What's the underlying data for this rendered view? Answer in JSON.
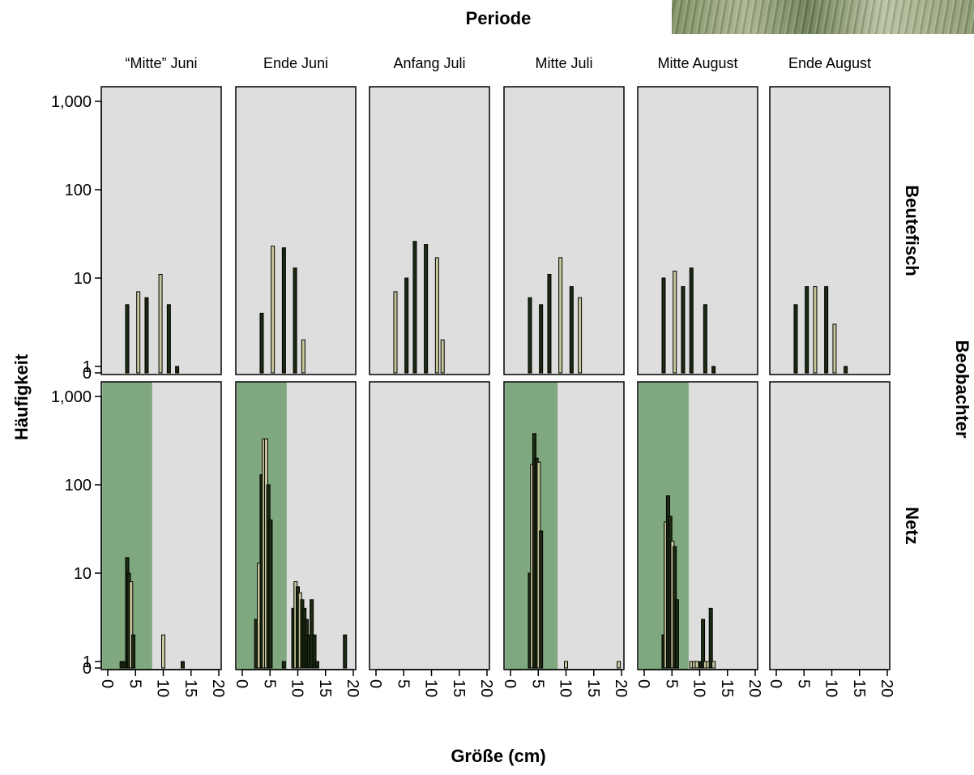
{
  "chart_data": {
    "type": "bar",
    "title": "Periode",
    "xlabel": "Größe (cm)",
    "ylabel": "Häufigkeit",
    "row_group_label": "Beobachter",
    "columns": [
      "“Mitte” Juni",
      "Ende Juni",
      "Anfang Juli",
      "Mitte Juli",
      "Mitte August",
      "Ende August"
    ],
    "rows": [
      "Beutefisch",
      "Netz"
    ],
    "x_ticks": [
      "0",
      "5",
      "10",
      "15",
      "20"
    ],
    "xlim": [
      -1,
      21
    ],
    "y_ticks": [
      {
        "value": 0,
        "label": "0"
      },
      {
        "value": 1,
        "label": "1"
      },
      {
        "value": 10,
        "label": "10"
      },
      {
        "value": 100,
        "label": "100"
      },
      {
        "value": 1000,
        "label": "1,000"
      }
    ],
    "y_scale": "log (pseudo-log, 0 shown)",
    "colors": {
      "panel_bg": "#dedede",
      "shade": "#7fa87f",
      "bar_light": "#c9c79c",
      "bar_dark": "#1c2a12"
    },
    "panels": [
      {
        "row": "Beutefisch",
        "column": "“Mitte” Juni",
        "shade_x": null,
        "bars": [
          [
            3.5,
            5,
            "dark"
          ],
          [
            5.5,
            7,
            "light"
          ],
          [
            7,
            6,
            "dark"
          ],
          [
            9.5,
            11,
            "light"
          ],
          [
            11,
            5,
            "dark"
          ],
          [
            12.5,
            1,
            "dark"
          ]
        ]
      },
      {
        "row": "Beutefisch",
        "column": "Ende Juni",
        "shade_x": null,
        "bars": [
          [
            3.5,
            4,
            "dark"
          ],
          [
            5.5,
            23,
            "light"
          ],
          [
            7.5,
            22,
            "dark"
          ],
          [
            9.5,
            13,
            "dark"
          ],
          [
            11,
            2,
            "light"
          ]
        ]
      },
      {
        "row": "Beutefisch",
        "column": "Anfang Juli",
        "shade_x": null,
        "bars": [
          [
            3.5,
            7,
            "light"
          ],
          [
            5.5,
            10,
            "dark"
          ],
          [
            7,
            26,
            "dark"
          ],
          [
            9,
            24,
            "dark"
          ],
          [
            11,
            17,
            "light"
          ],
          [
            12,
            2,
            "light"
          ]
        ]
      },
      {
        "row": "Beutefisch",
        "column": "Mitte Juli",
        "shade_x": null,
        "bars": [
          [
            3.5,
            6,
            "dark"
          ],
          [
            5.5,
            5,
            "dark"
          ],
          [
            7,
            11,
            "dark"
          ],
          [
            9,
            17,
            "light"
          ],
          [
            11,
            8,
            "dark"
          ],
          [
            12.5,
            6,
            "light"
          ]
        ]
      },
      {
        "row": "Beutefisch",
        "column": "Mitte August",
        "shade_x": null,
        "bars": [
          [
            3.5,
            10,
            "dark"
          ],
          [
            5.5,
            12,
            "light"
          ],
          [
            7,
            8,
            "dark"
          ],
          [
            8.5,
            13,
            "dark"
          ],
          [
            11,
            5,
            "dark"
          ],
          [
            12.5,
            1,
            "dark"
          ]
        ]
      },
      {
        "row": "Beutefisch",
        "column": "Ende August",
        "shade_x": null,
        "bars": [
          [
            3.5,
            5,
            "dark"
          ],
          [
            5.5,
            8,
            "dark"
          ],
          [
            7,
            8,
            "light"
          ],
          [
            9,
            8,
            "dark"
          ],
          [
            10.5,
            3,
            "light"
          ],
          [
            12.5,
            1,
            "dark"
          ]
        ]
      },
      {
        "row": "Netz",
        "column": "“Mitte” Juni",
        "shade_x": [
          -1,
          8
        ],
        "bars": [
          [
            2.5,
            1,
            "dark"
          ],
          [
            3,
            1,
            "dark"
          ],
          [
            3.5,
            15,
            "dark"
          ],
          [
            3.8,
            10,
            "dark"
          ],
          [
            4.2,
            8,
            "light"
          ],
          [
            4.6,
            2,
            "dark"
          ],
          [
            10,
            2,
            "light"
          ],
          [
            13.5,
            1,
            "dark"
          ]
        ]
      },
      {
        "row": "Netz",
        "column": "Ende Juni",
        "shade_x": [
          -1,
          8
        ],
        "bars": [
          [
            2.5,
            3,
            "dark"
          ],
          [
            3,
            13,
            "light"
          ],
          [
            3.5,
            130,
            "dark"
          ],
          [
            3.9,
            330,
            "light"
          ],
          [
            4.3,
            330,
            "light"
          ],
          [
            4.7,
            100,
            "dark"
          ],
          [
            5.1,
            40,
            "dark"
          ],
          [
            7.5,
            1,
            "dark"
          ],
          [
            9.2,
            4,
            "dark"
          ],
          [
            9.6,
            8,
            "light"
          ],
          [
            10,
            7,
            "dark"
          ],
          [
            10.4,
            6,
            "light"
          ],
          [
            10.8,
            5,
            "dark"
          ],
          [
            11.2,
            4,
            "dark"
          ],
          [
            11.6,
            3,
            "dark"
          ],
          [
            12,
            2,
            "dark"
          ],
          [
            12.5,
            5,
            "dark"
          ],
          [
            13,
            2,
            "dark"
          ],
          [
            13.5,
            1,
            "dark"
          ],
          [
            18.5,
            2,
            "dark"
          ]
        ]
      },
      {
        "row": "Netz",
        "column": "Anfang Juli",
        "shade_x": null,
        "bars": []
      },
      {
        "row": "Netz",
        "column": "Mitte Juli",
        "shade_x": [
          -1,
          8.5
        ],
        "bars": [
          [
            3.5,
            10,
            "dark"
          ],
          [
            3.9,
            170,
            "light"
          ],
          [
            4.3,
            380,
            "dark"
          ],
          [
            4.7,
            200,
            "dark"
          ],
          [
            5.1,
            180,
            "light"
          ],
          [
            5.5,
            30,
            "dark"
          ],
          [
            10,
            1,
            "light"
          ],
          [
            19.5,
            1,
            "light"
          ]
        ]
      },
      {
        "row": "Netz",
        "column": "Mitte August",
        "shade_x": [
          -1,
          8
        ],
        "bars": [
          [
            3.5,
            2,
            "dark"
          ],
          [
            3.9,
            38,
            "light"
          ],
          [
            4.3,
            75,
            "dark"
          ],
          [
            4.7,
            44,
            "dark"
          ],
          [
            5.1,
            23,
            "light"
          ],
          [
            5.5,
            20,
            "dark"
          ],
          [
            5.9,
            5,
            "dark"
          ],
          [
            8.5,
            1,
            "light"
          ],
          [
            9,
            1,
            "light"
          ],
          [
            9.5,
            1,
            "light"
          ],
          [
            10.2,
            1,
            "dark"
          ],
          [
            10.6,
            3,
            "dark"
          ],
          [
            11,
            1,
            "light"
          ],
          [
            11.5,
            1,
            "light"
          ],
          [
            12,
            4,
            "dark"
          ],
          [
            12.5,
            1,
            "light"
          ]
        ]
      },
      {
        "row": "Netz",
        "column": "Ende August",
        "shade_x": null,
        "bars": []
      }
    ]
  }
}
